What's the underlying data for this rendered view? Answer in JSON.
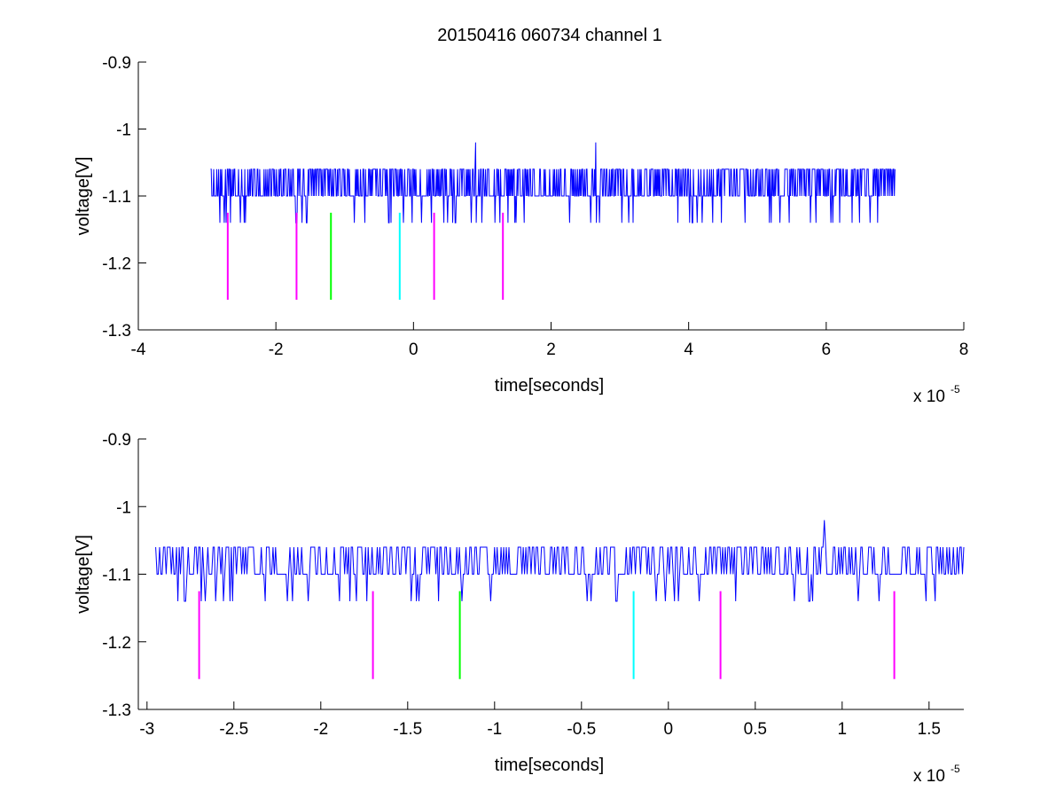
{
  "figure": {
    "title": "20150416 060734 channel 1"
  },
  "chart_data": [
    {
      "type": "line",
      "title": "20150416 060734 channel 1",
      "xlabel": "time[seconds]",
      "ylabel": "voltage[V]",
      "x_exponent_label": "x 10",
      "x_exponent": "-5",
      "x_scale": 1e-05,
      "xlim": [
        -4,
        8
      ],
      "ylim": [
        -1.3,
        -0.9
      ],
      "xticks": [
        -4,
        -2,
        0,
        2,
        4,
        6,
        8
      ],
      "xtick_labels": [
        "-4",
        "-2",
        "0",
        "2",
        "4",
        "6",
        "8"
      ],
      "yticks": [
        -0.9,
        -1,
        -1.1,
        -1.2,
        -1.3
      ],
      "ytick_labels": [
        "-0.9",
        "-1",
        "-1.1",
        "-1.2",
        "-1.3"
      ],
      "grid": false,
      "series": [
        {
          "color": "#0000ff",
          "x_start": -2.95,
          "x_end": 7.0,
          "baseline": -1.1,
          "levels": [
            -1.06,
            -1.1,
            -1.14
          ],
          "spikes": [
            {
              "x": 0.9,
              "y": -1.02
            },
            {
              "x": 2.65,
              "y": -1.02
            }
          ]
        }
      ],
      "markers": [
        {
          "x": -2.7,
          "color": "#ff00ff",
          "y_range": [
            -1.255,
            -1.125
          ]
        },
        {
          "x": -1.7,
          "color": "#ff00ff",
          "y_range": [
            -1.255,
            -1.125
          ]
        },
        {
          "x": -1.2,
          "color": "#00ff00",
          "y_range": [
            -1.255,
            -1.125
          ]
        },
        {
          "x": -0.2,
          "color": "#00ffff",
          "y_range": [
            -1.255,
            -1.125
          ]
        },
        {
          "x": 0.3,
          "color": "#ff00ff",
          "y_range": [
            -1.255,
            -1.125
          ]
        },
        {
          "x": 1.3,
          "color": "#ff00ff",
          "y_range": [
            -1.255,
            -1.125
          ]
        }
      ]
    },
    {
      "type": "line",
      "xlabel": "time[seconds]",
      "ylabel": "voltage[V]",
      "x_exponent_label": "x 10",
      "x_exponent": "-5",
      "x_scale": 1e-05,
      "xlim": [
        -3.05,
        1.7
      ],
      "ylim": [
        -1.3,
        -0.9
      ],
      "xticks": [
        -3,
        -2.5,
        -2,
        -1.5,
        -1,
        -0.5,
        0,
        0.5,
        1,
        1.5
      ],
      "xtick_labels": [
        "-3",
        "-2.5",
        "-2",
        "-1.5",
        "-1",
        "-0.5",
        "0",
        "0.5",
        "1",
        "1.5"
      ],
      "yticks": [
        -0.9,
        -1,
        -1.1,
        -1.2,
        -1.3
      ],
      "ytick_labels": [
        "-0.9",
        "-1",
        "-1.1",
        "-1.2",
        "-1.3"
      ],
      "grid": false,
      "series": [
        {
          "color": "#0000ff",
          "x_start": -2.95,
          "x_end": 1.7,
          "baseline": -1.1,
          "levels": [
            -1.06,
            -1.1,
            -1.14
          ],
          "spikes": [
            {
              "x": 0.9,
              "y": -1.02
            }
          ]
        }
      ],
      "markers": [
        {
          "x": -2.7,
          "color": "#ff00ff",
          "y_range": [
            -1.255,
            -1.125
          ]
        },
        {
          "x": -1.7,
          "color": "#ff00ff",
          "y_range": [
            -1.255,
            -1.125
          ]
        },
        {
          "x": -1.2,
          "color": "#00ff00",
          "y_range": [
            -1.255,
            -1.125
          ]
        },
        {
          "x": -0.2,
          "color": "#00ffff",
          "y_range": [
            -1.255,
            -1.125
          ]
        },
        {
          "x": 0.3,
          "color": "#ff00ff",
          "y_range": [
            -1.255,
            -1.125
          ]
        },
        {
          "x": 1.3,
          "color": "#ff00ff",
          "y_range": [
            -1.255,
            -1.125
          ]
        }
      ]
    }
  ]
}
